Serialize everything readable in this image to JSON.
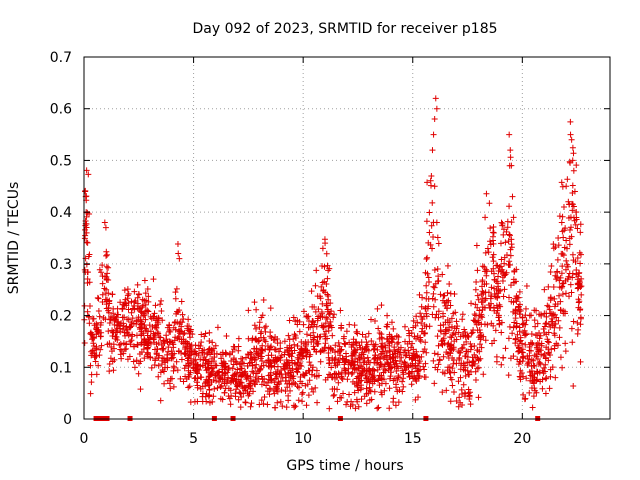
{
  "chart_data": {
    "type": "scatter",
    "title": "Day 092 of 2023, SRMTID for receiver p185",
    "xlabel": "GPS time / hours",
    "ylabel": "SRMTID / TECUs",
    "xlim": [
      0,
      24
    ],
    "ylim": [
      0,
      0.7
    ],
    "xticks": [
      0,
      5,
      10,
      15,
      20
    ],
    "yticks": [
      0,
      0.1,
      0.2,
      0.3,
      0.4,
      0.5,
      0.6,
      0.7
    ],
    "xtick_labels": [
      "0",
      "5",
      "10",
      "15",
      "20"
    ],
    "ytick_labels": [
      "0",
      "0.1",
      "0.2",
      "0.3",
      "0.4",
      "0.5",
      "0.6",
      "0.7"
    ],
    "grid": true,
    "marker": "plus",
    "color": "#e00000",
    "profile": [
      [
        0.0,
        0.2,
        0.06
      ],
      [
        0.1,
        0.4,
        0.05
      ],
      [
        0.2,
        0.3,
        0.08
      ],
      [
        0.3,
        0.15,
        0.04
      ],
      [
        0.5,
        0.14,
        0.03
      ],
      [
        0.8,
        0.22,
        0.05
      ],
      [
        1.0,
        0.3,
        0.07
      ],
      [
        1.2,
        0.16,
        0.04
      ],
      [
        1.5,
        0.17,
        0.04
      ],
      [
        2.0,
        0.19,
        0.04
      ],
      [
        2.5,
        0.18,
        0.04
      ],
      [
        3.0,
        0.17,
        0.05
      ],
      [
        3.5,
        0.14,
        0.04
      ],
      [
        4.0,
        0.12,
        0.04
      ],
      [
        4.3,
        0.2,
        0.06
      ],
      [
        4.6,
        0.14,
        0.04
      ],
      [
        5.0,
        0.11,
        0.03
      ],
      [
        5.5,
        0.1,
        0.03
      ],
      [
        6.0,
        0.1,
        0.03
      ],
      [
        6.5,
        0.09,
        0.03
      ],
      [
        7.0,
        0.08,
        0.03
      ],
      [
        7.5,
        0.08,
        0.03
      ],
      [
        8.0,
        0.12,
        0.05
      ],
      [
        8.5,
        0.1,
        0.04
      ],
      [
        9.0,
        0.08,
        0.03
      ],
      [
        9.5,
        0.1,
        0.04
      ],
      [
        10.0,
        0.11,
        0.04
      ],
      [
        10.5,
        0.14,
        0.05
      ],
      [
        11.0,
        0.22,
        0.07
      ],
      [
        11.5,
        0.1,
        0.04
      ],
      [
        12.0,
        0.1,
        0.04
      ],
      [
        12.5,
        0.11,
        0.04
      ],
      [
        13.0,
        0.1,
        0.04
      ],
      [
        13.5,
        0.11,
        0.04
      ],
      [
        14.0,
        0.12,
        0.04
      ],
      [
        14.5,
        0.1,
        0.03
      ],
      [
        15.0,
        0.11,
        0.04
      ],
      [
        15.5,
        0.16,
        0.05
      ],
      [
        15.8,
        0.3,
        0.12
      ],
      [
        16.0,
        0.2,
        0.08
      ],
      [
        16.5,
        0.18,
        0.06
      ],
      [
        17.0,
        0.12,
        0.05
      ],
      [
        17.5,
        0.1,
        0.04
      ],
      [
        18.0,
        0.18,
        0.06
      ],
      [
        18.5,
        0.28,
        0.06
      ],
      [
        19.0,
        0.26,
        0.06
      ],
      [
        19.4,
        0.3,
        0.1
      ],
      [
        19.6,
        0.22,
        0.06
      ],
      [
        20.0,
        0.14,
        0.05
      ],
      [
        20.5,
        0.1,
        0.04
      ],
      [
        21.0,
        0.14,
        0.05
      ],
      [
        21.5,
        0.22,
        0.07
      ],
      [
        22.0,
        0.3,
        0.1
      ],
      [
        22.3,
        0.36,
        0.1
      ],
      [
        22.7,
        0.24,
        0.06
      ]
    ],
    "outliers": [
      [
        0.05,
        0.44
      ],
      [
        0.08,
        0.43
      ],
      [
        0.1,
        0.4
      ],
      [
        0.12,
        0.36
      ],
      [
        0.95,
        0.38
      ],
      [
        1.0,
        0.37
      ],
      [
        4.3,
        0.32
      ],
      [
        4.35,
        0.31
      ],
      [
        7.5,
        0.21
      ],
      [
        8.2,
        0.23
      ],
      [
        10.9,
        0.33
      ],
      [
        11.0,
        0.34
      ],
      [
        15.9,
        0.52
      ],
      [
        15.95,
        0.55
      ],
      [
        16.0,
        0.58
      ],
      [
        16.05,
        0.62
      ],
      [
        16.1,
        0.6
      ],
      [
        15.85,
        0.47
      ],
      [
        16.0,
        0.45
      ],
      [
        16.1,
        0.38
      ],
      [
        18.3,
        0.39
      ],
      [
        18.7,
        0.36
      ],
      [
        19.4,
        0.55
      ],
      [
        19.45,
        0.52
      ],
      [
        19.5,
        0.49
      ],
      [
        19.55,
        0.43
      ],
      [
        19.6,
        0.39
      ],
      [
        22.0,
        0.45
      ],
      [
        22.1,
        0.42
      ],
      [
        22.2,
        0.55
      ],
      [
        22.25,
        0.54
      ],
      [
        22.3,
        0.5
      ],
      [
        22.35,
        0.48
      ],
      [
        22.4,
        0.44
      ],
      [
        22.45,
        0.4
      ],
      [
        21.9,
        0.41
      ],
      [
        21.8,
        0.38
      ]
    ],
    "zero_flags": [
      0.55,
      0.65,
      0.75,
      0.85,
      0.95,
      1.05,
      2.1,
      5.95,
      6.8,
      11.7,
      15.6,
      20.7
    ]
  }
}
